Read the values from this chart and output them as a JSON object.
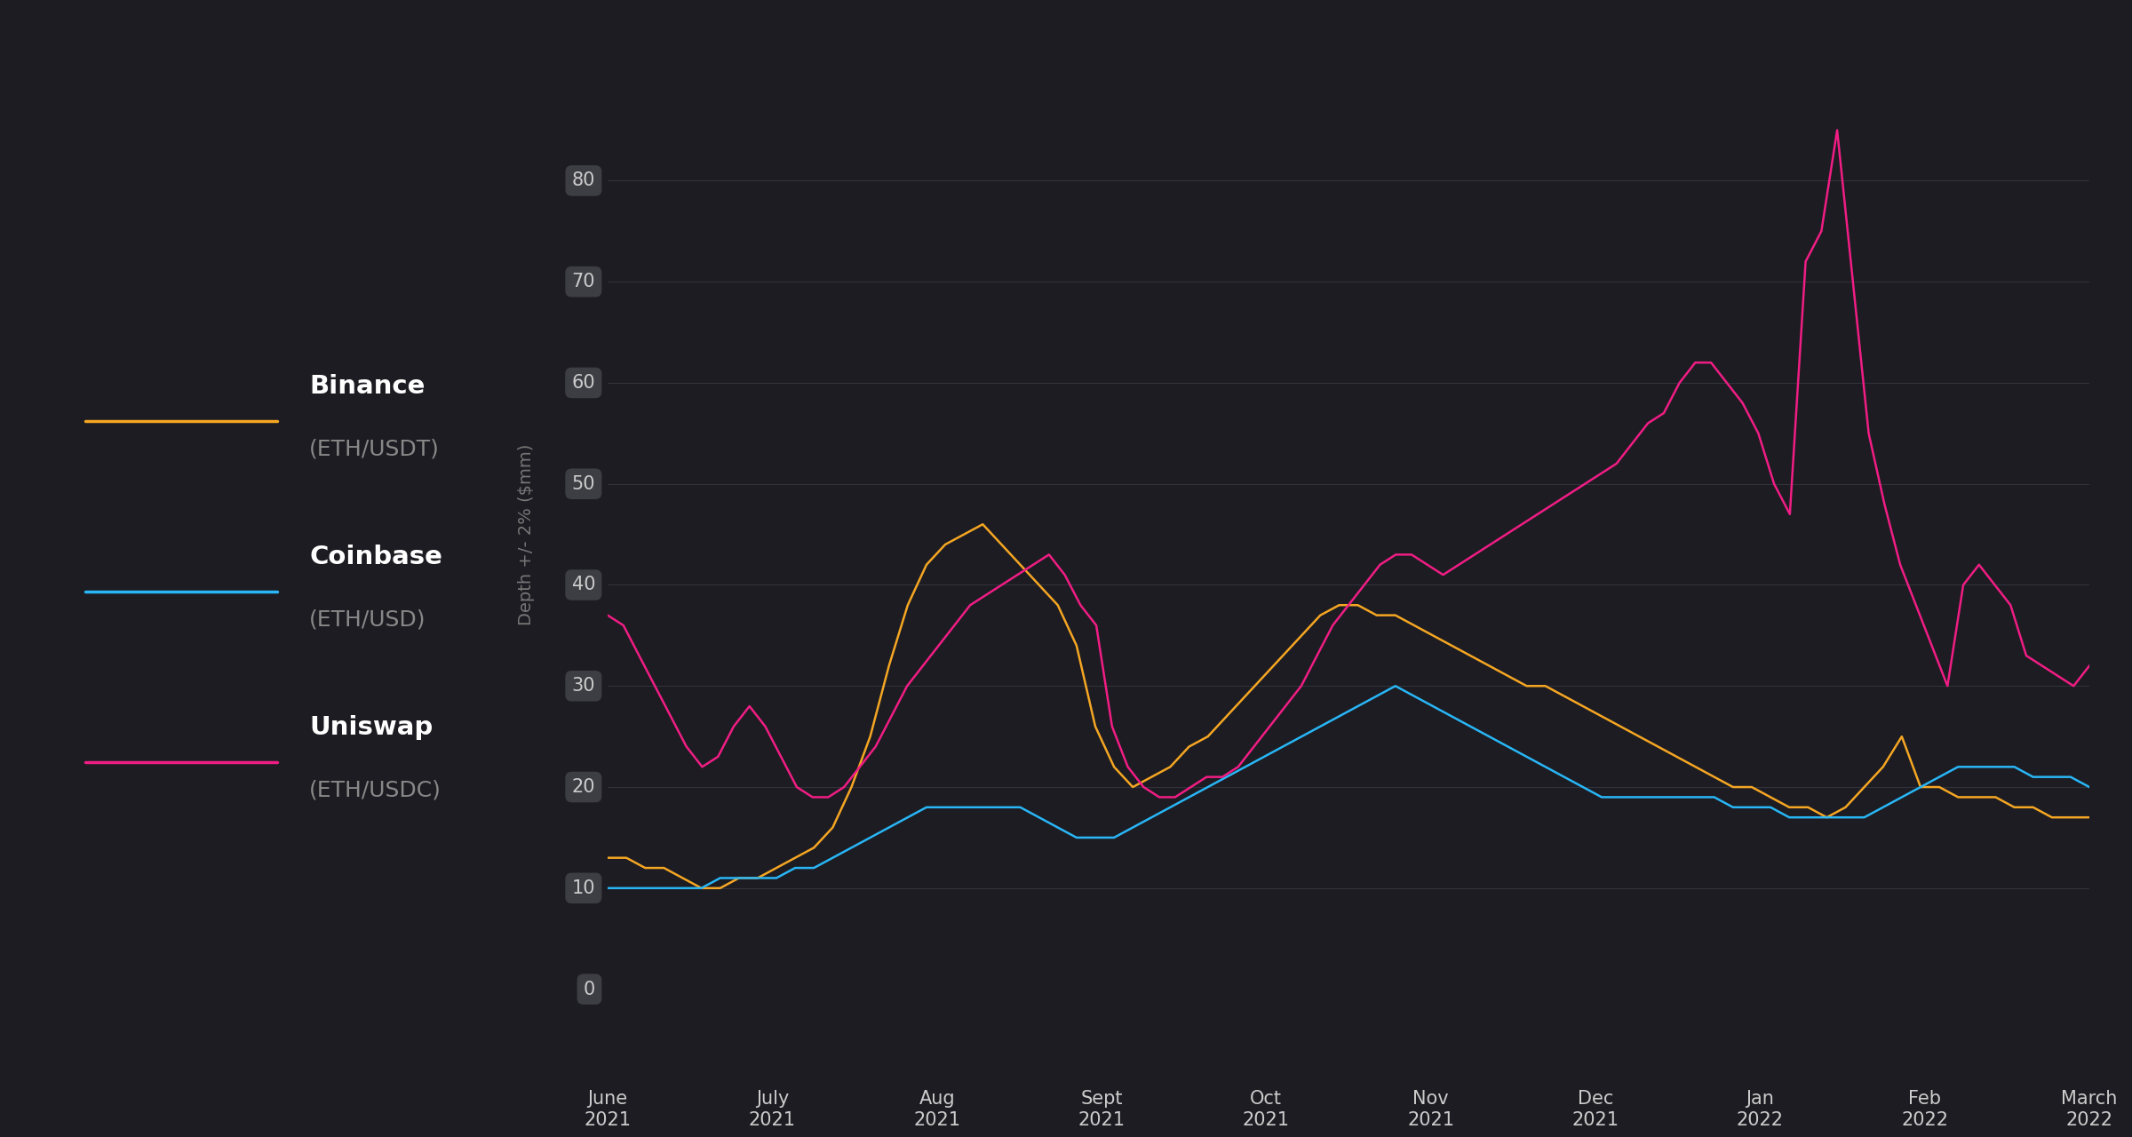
{
  "background_color": "#1c1c22",
  "grid_color": "#3a3a45",
  "tick_label_bg": "#3d3d44",
  "tick_label_color": "#cccccc",
  "ylabel": "Depth +/- 2% ($mm)",
  "ylabel_color": "#777777",
  "ylim": [
    0,
    90
  ],
  "yticks": [
    0,
    10,
    20,
    30,
    40,
    50,
    60,
    70,
    80
  ],
  "x_labels": [
    "June\n2021",
    "July\n2021",
    "Aug\n2021",
    "Sept\n2021",
    "Oct\n2021",
    "Nov\n2021",
    "Dec\n2021",
    "Jan\n2022",
    "Feb\n2022",
    "March\n2022"
  ],
  "legend": [
    {
      "label": "Binance",
      "sublabel": "(ETH/USDT)",
      "color": "#f5a623"
    },
    {
      "label": "Coinbase",
      "sublabel": "(ETH/USD)",
      "color": "#29b6f6"
    },
    {
      "label": "Uniswap",
      "sublabel": "(ETH/USDC)",
      "color": "#f01d84"
    }
  ],
  "binance": [
    13,
    13,
    12,
    12,
    11,
    10,
    10,
    11,
    11,
    12,
    13,
    14,
    16,
    20,
    25,
    32,
    38,
    42,
    44,
    45,
    46,
    44,
    42,
    40,
    38,
    34,
    26,
    22,
    20,
    21,
    22,
    24,
    25,
    27,
    29,
    31,
    33,
    35,
    37,
    38,
    38,
    37,
    37,
    36,
    35,
    34,
    33,
    32,
    31,
    30,
    30,
    29,
    28,
    27,
    26,
    25,
    24,
    23,
    22,
    21,
    20,
    20,
    19,
    18,
    18,
    17,
    18,
    20,
    22,
    25,
    20,
    20,
    19,
    19,
    19,
    18,
    18,
    17,
    17,
    17
  ],
  "coinbase": [
    10,
    10,
    10,
    10,
    10,
    10,
    11,
    11,
    11,
    11,
    12,
    12,
    13,
    14,
    15,
    16,
    17,
    18,
    18,
    18,
    18,
    18,
    18,
    17,
    16,
    15,
    15,
    15,
    16,
    17,
    18,
    19,
    20,
    21,
    22,
    23,
    24,
    25,
    26,
    27,
    28,
    29,
    30,
    29,
    28,
    27,
    26,
    25,
    24,
    23,
    22,
    21,
    20,
    19,
    19,
    19,
    19,
    19,
    19,
    19,
    18,
    18,
    18,
    17,
    17,
    17,
    17,
    17,
    18,
    19,
    20,
    21,
    22,
    22,
    22,
    22,
    21,
    21,
    21,
    20
  ],
  "uniswap": [
    37,
    36,
    33,
    30,
    27,
    24,
    22,
    23,
    26,
    28,
    26,
    23,
    20,
    19,
    19,
    20,
    22,
    24,
    27,
    30,
    32,
    34,
    36,
    38,
    39,
    40,
    41,
    42,
    43,
    41,
    38,
    36,
    26,
    22,
    20,
    19,
    19,
    20,
    21,
    21,
    22,
    24,
    26,
    28,
    30,
    33,
    36,
    38,
    40,
    42,
    43,
    43,
    42,
    41,
    42,
    43,
    44,
    45,
    46,
    47,
    48,
    49,
    50,
    51,
    52,
    54,
    56,
    57,
    60,
    62,
    62,
    60,
    58,
    55,
    50,
    47,
    72,
    75,
    85,
    70,
    55,
    48,
    42,
    38,
    34,
    30,
    40,
    42,
    40,
    38,
    33,
    32,
    31,
    30,
    32
  ]
}
